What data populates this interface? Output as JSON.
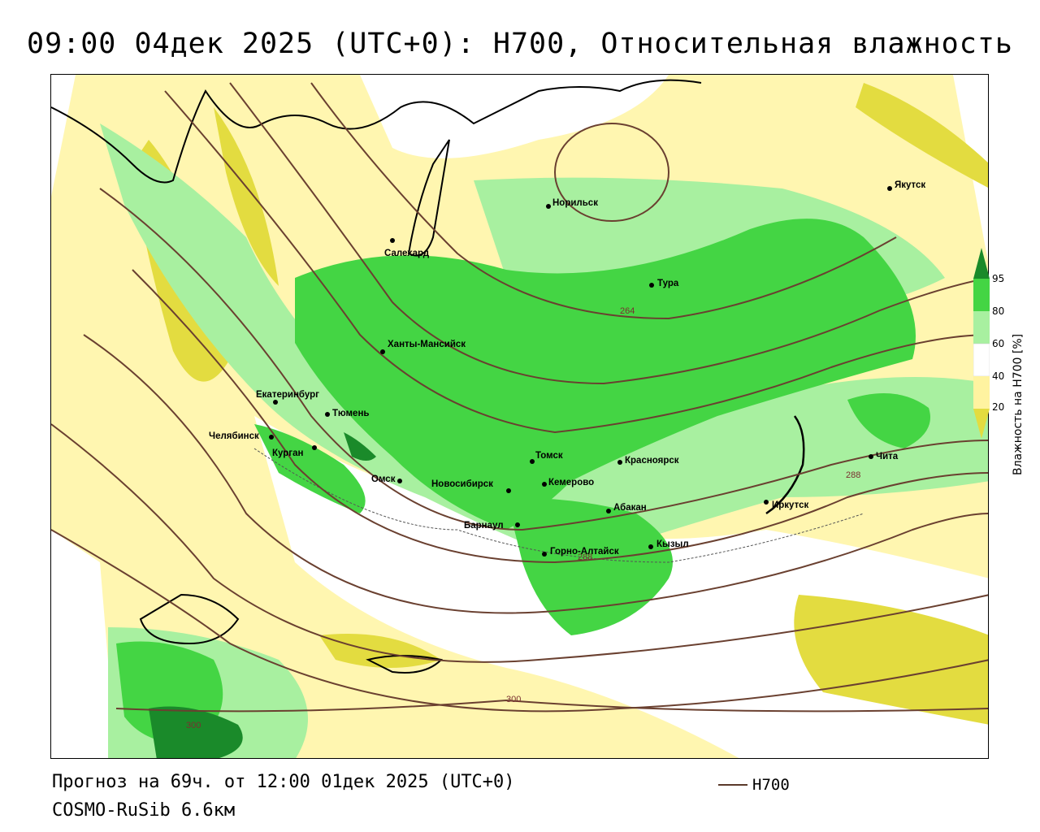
{
  "title": "09:00 04дек 2025 (UTC+0): H700, Относительная влажность",
  "footer": {
    "forecast": "Прогноз на 69ч. от 12:00 01дек 2025 (UTC+0)",
    "model": "COSMO-RuSib 6.6км"
  },
  "legend": {
    "contour_label": "H700"
  },
  "colorbar": {
    "label": "Влажность на H700 [%]",
    "ticks": [
      "95",
      "80",
      "60",
      "40",
      "20"
    ],
    "colors": {
      "95": "#1a8a2a",
      "80": "#44d544",
      "60": "#a8f0a0",
      "40": "#ffffff",
      "20": "#fff3a0",
      "low": "#e3dc40"
    }
  },
  "cities": [
    {
      "name": "Норильск"
    },
    {
      "name": "Якутск"
    },
    {
      "name": "Салехард"
    },
    {
      "name": "Тура"
    },
    {
      "name": "Ханты-Мансийск"
    },
    {
      "name": "Екатеринбург"
    },
    {
      "name": "Тюмень"
    },
    {
      "name": "Челябинск"
    },
    {
      "name": "Курган"
    },
    {
      "name": "Омск"
    },
    {
      "name": "Новосибирск"
    },
    {
      "name": "Томск"
    },
    {
      "name": "Кемерово"
    },
    {
      "name": "Красноярск"
    },
    {
      "name": "Барнаул"
    },
    {
      "name": "Абакан"
    },
    {
      "name": "Горно-Алтайск"
    },
    {
      "name": "Кызыл"
    },
    {
      "name": "Иркутск"
    },
    {
      "name": "Чита"
    }
  ],
  "isoline_labels": [
    "264",
    "288",
    "300",
    "300",
    "288"
  ]
}
